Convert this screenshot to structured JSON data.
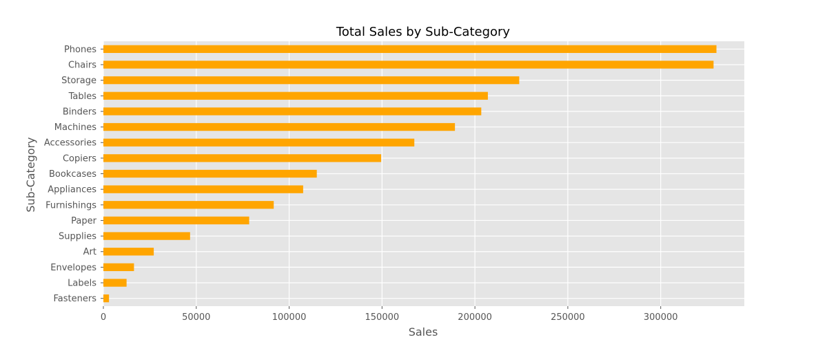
{
  "chart_data": {
    "type": "bar",
    "orientation": "horizontal",
    "title": "Total Sales by Sub-Category",
    "xlabel": "Sales",
    "ylabel": "Sub-Category",
    "categories": [
      "Phones",
      "Chairs",
      "Storage",
      "Tables",
      "Binders",
      "Machines",
      "Accessories",
      "Copiers",
      "Bookcases",
      "Appliances",
      "Furnishings",
      "Paper",
      "Supplies",
      "Art",
      "Envelopes",
      "Labels",
      "Fasteners"
    ],
    "values": [
      330007,
      328449,
      223844,
      206966,
      203413,
      189239,
      167380,
      149528,
      114880,
      107532,
      91705,
      78479,
      46674,
      27119,
      16476,
      12486,
      3024
    ],
    "xlim": [
      0,
      345000
    ],
    "xticks": [
      0,
      50000,
      100000,
      150000,
      200000,
      250000,
      300000
    ],
    "xtick_labels": [
      "0",
      "50000",
      "100000",
      "150000",
      "200000",
      "250000",
      "300000"
    ],
    "grid": true,
    "colors": {
      "bar": "#FFA500",
      "plot_background": "#E5E5E5",
      "grid": "#FFFFFF"
    }
  }
}
